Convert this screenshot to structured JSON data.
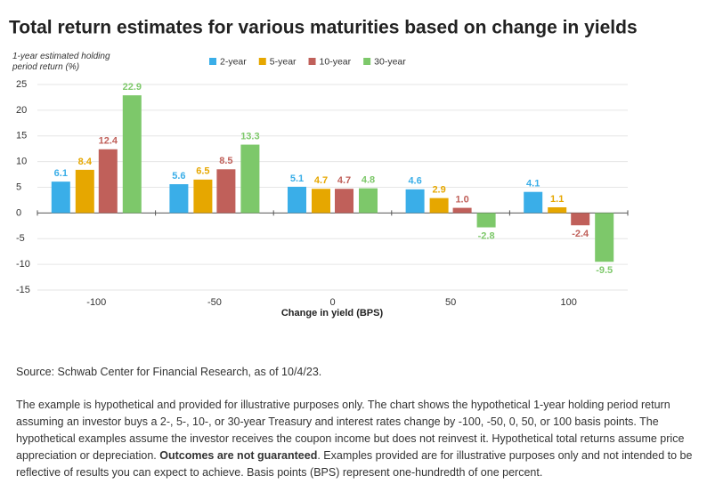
{
  "chart_data": {
    "type": "bar",
    "title": "Total return estimates for various maturities based on change in yields",
    "y_label": "1-year estimated holding period return (%)",
    "x_label": "Change in yield (BPS)",
    "categories": [
      "-100",
      "-50",
      "0",
      "50",
      "100"
    ],
    "series": [
      {
        "name": "2-year",
        "color": "#3aaee8",
        "values": [
          6.1,
          5.6,
          5.1,
          4.6,
          4.1
        ],
        "value_labels": [
          "6.1",
          "5.6",
          "5.1",
          "4.6",
          "4.1"
        ]
      },
      {
        "name": "5-year",
        "color": "#e6a700",
        "values": [
          8.4,
          6.5,
          4.7,
          2.9,
          1.1
        ],
        "value_labels": [
          "8.4",
          "6.5",
          "4.7",
          "2.9",
          "1.1"
        ]
      },
      {
        "name": "10-year",
        "color": "#c0605a",
        "values": [
          12.4,
          8.5,
          4.7,
          1.0,
          -2.4
        ],
        "value_labels": [
          "12.4",
          "8.5",
          "4.7",
          "1.0",
          "-2.4"
        ]
      },
      {
        "name": "30-year",
        "color": "#7dc86a",
        "values": [
          22.9,
          13.3,
          4.8,
          -2.8,
          -9.5
        ],
        "value_labels": [
          "22.9",
          "13.3",
          "4.8",
          "-2.8",
          "-9.5"
        ]
      }
    ],
    "ylim": [
      -15,
      25
    ],
    "yticks": [
      -15,
      -10,
      -5,
      0,
      5,
      10,
      15,
      20,
      25
    ],
    "grid": true,
    "legend": "top"
  },
  "notes": {
    "source": "Source: Schwab Center for Financial Research, as of 10/4/23.",
    "disclaimer": [
      "The example is hypothetical and provided for illustrative purposes only. The chart shows the hypothetical 1-year holding period return assuming an investor buys a 2-, 5-, 10-, or 30-year Treasury and interest rates change by -100, -50, 0, 50, or 100 basis points. The hypothetical examples assume the investor receives the coupon income but does not reinvest it. Hypothetical total returns assume price appreciation or depreciation. ",
      "Outcomes are not guaranteed",
      ". Examples provided are for illustrative purposes only and not intended to be reflective of results you can expect to achieve. Basis points (BPS) represent one-hundredth of one percent."
    ]
  }
}
